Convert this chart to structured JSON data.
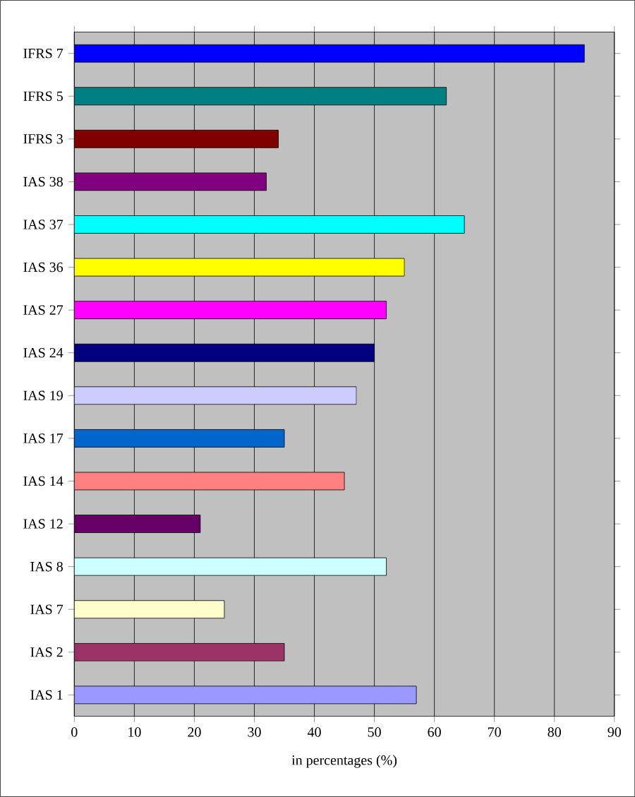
{
  "chart_data": {
    "type": "bar",
    "orientation": "horizontal",
    "xlabel": "in percentages (%)",
    "categories": [
      "IFRS 7",
      "IFRS 5",
      "IFRS 3",
      "IAS 38",
      "IAS 37",
      "IAS 36",
      "IAS 27",
      "IAS 24",
      "IAS 19",
      "IAS 17",
      "IAS 14",
      "IAS 12",
      "IAS 8",
      "IAS 7",
      "IAS 2",
      "IAS 1"
    ],
    "values": [
      85,
      62,
      34,
      32,
      65,
      55,
      52,
      50,
      47,
      35,
      45,
      21,
      52,
      25,
      35,
      57
    ],
    "colors": [
      "#0000ff",
      "#008080",
      "#800000",
      "#800080",
      "#00ffff",
      "#ffff00",
      "#ff00ff",
      "#000080",
      "#ccccff",
      "#0066cc",
      "#ff8080",
      "#660066",
      "#ccffff",
      "#ffffcc",
      "#993366",
      "#9999ff"
    ],
    "xlim": [
      0,
      90
    ],
    "xticks": [
      0,
      10,
      20,
      30,
      40,
      50,
      60,
      70,
      80,
      90
    ],
    "grid": "x"
  }
}
